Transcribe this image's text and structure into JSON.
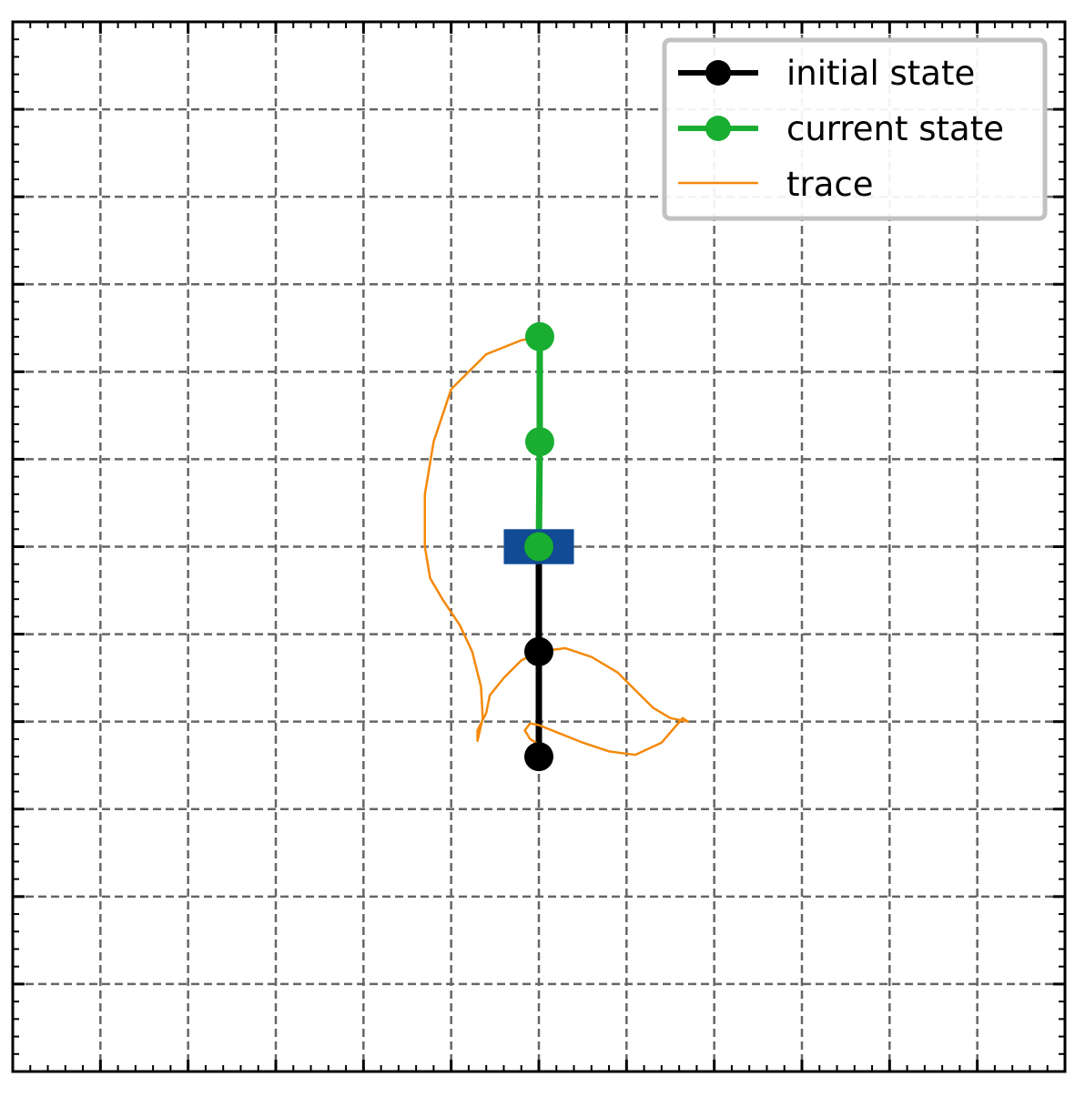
{
  "chart_data": {
    "type": "line",
    "title": "",
    "xlabel": "",
    "ylabel": "",
    "xlim": [
      -3,
      3
    ],
    "ylim": [
      -3,
      3
    ],
    "major_tick_step": 0.5,
    "minor_tick_step": 0.1,
    "grid": true,
    "legend_position": "top-right",
    "cart": {
      "center": [
        0,
        0
      ],
      "width": 0.4,
      "height": 0.2,
      "color": "#114b96"
    },
    "series": [
      {
        "name": "initial state",
        "kind": "pendulum",
        "color": "#000000",
        "x": [
          0,
          0,
          0
        ],
        "y": [
          0,
          -0.6,
          -1.2
        ]
      },
      {
        "name": "current state",
        "kind": "pendulum",
        "color": "#19ae32",
        "x": [
          0,
          0.005,
          0.005
        ],
        "y": [
          0,
          0.6,
          1.2
        ]
      },
      {
        "name": "trace",
        "kind": "trace",
        "color": "#f4890b",
        "x": [
          0.005,
          -0.1,
          -0.3,
          -0.5,
          -0.6,
          -0.65,
          -0.65,
          -0.62,
          -0.55,
          -0.45,
          -0.38,
          -0.33,
          -0.32,
          -0.35,
          -0.35,
          -0.3,
          -0.28,
          -0.2,
          -0.1,
          0.0,
          0.15,
          0.3,
          0.45,
          0.55,
          0.65,
          0.75,
          0.85,
          0.82,
          0.7,
          0.55,
          0.4,
          0.25,
          0.1,
          0.0,
          -0.05,
          -0.08,
          -0.05,
          0.0,
          0.02,
          0.02,
          0.0
        ],
        "y": [
          1.2,
          1.18,
          1.1,
          0.9,
          0.6,
          0.3,
          0.0,
          -0.18,
          -0.3,
          -0.45,
          -0.6,
          -0.8,
          -0.98,
          -1.11,
          -1.05,
          -0.95,
          -0.85,
          -0.75,
          -0.65,
          -0.6,
          -0.58,
          -0.63,
          -0.72,
          -0.82,
          -0.92,
          -0.98,
          -1.0,
          -0.98,
          -1.12,
          -1.19,
          -1.17,
          -1.12,
          -1.06,
          -1.02,
          -1.01,
          -1.05,
          -1.1,
          -1.13,
          -1.16,
          -1.19,
          -1.17
        ]
      }
    ]
  }
}
